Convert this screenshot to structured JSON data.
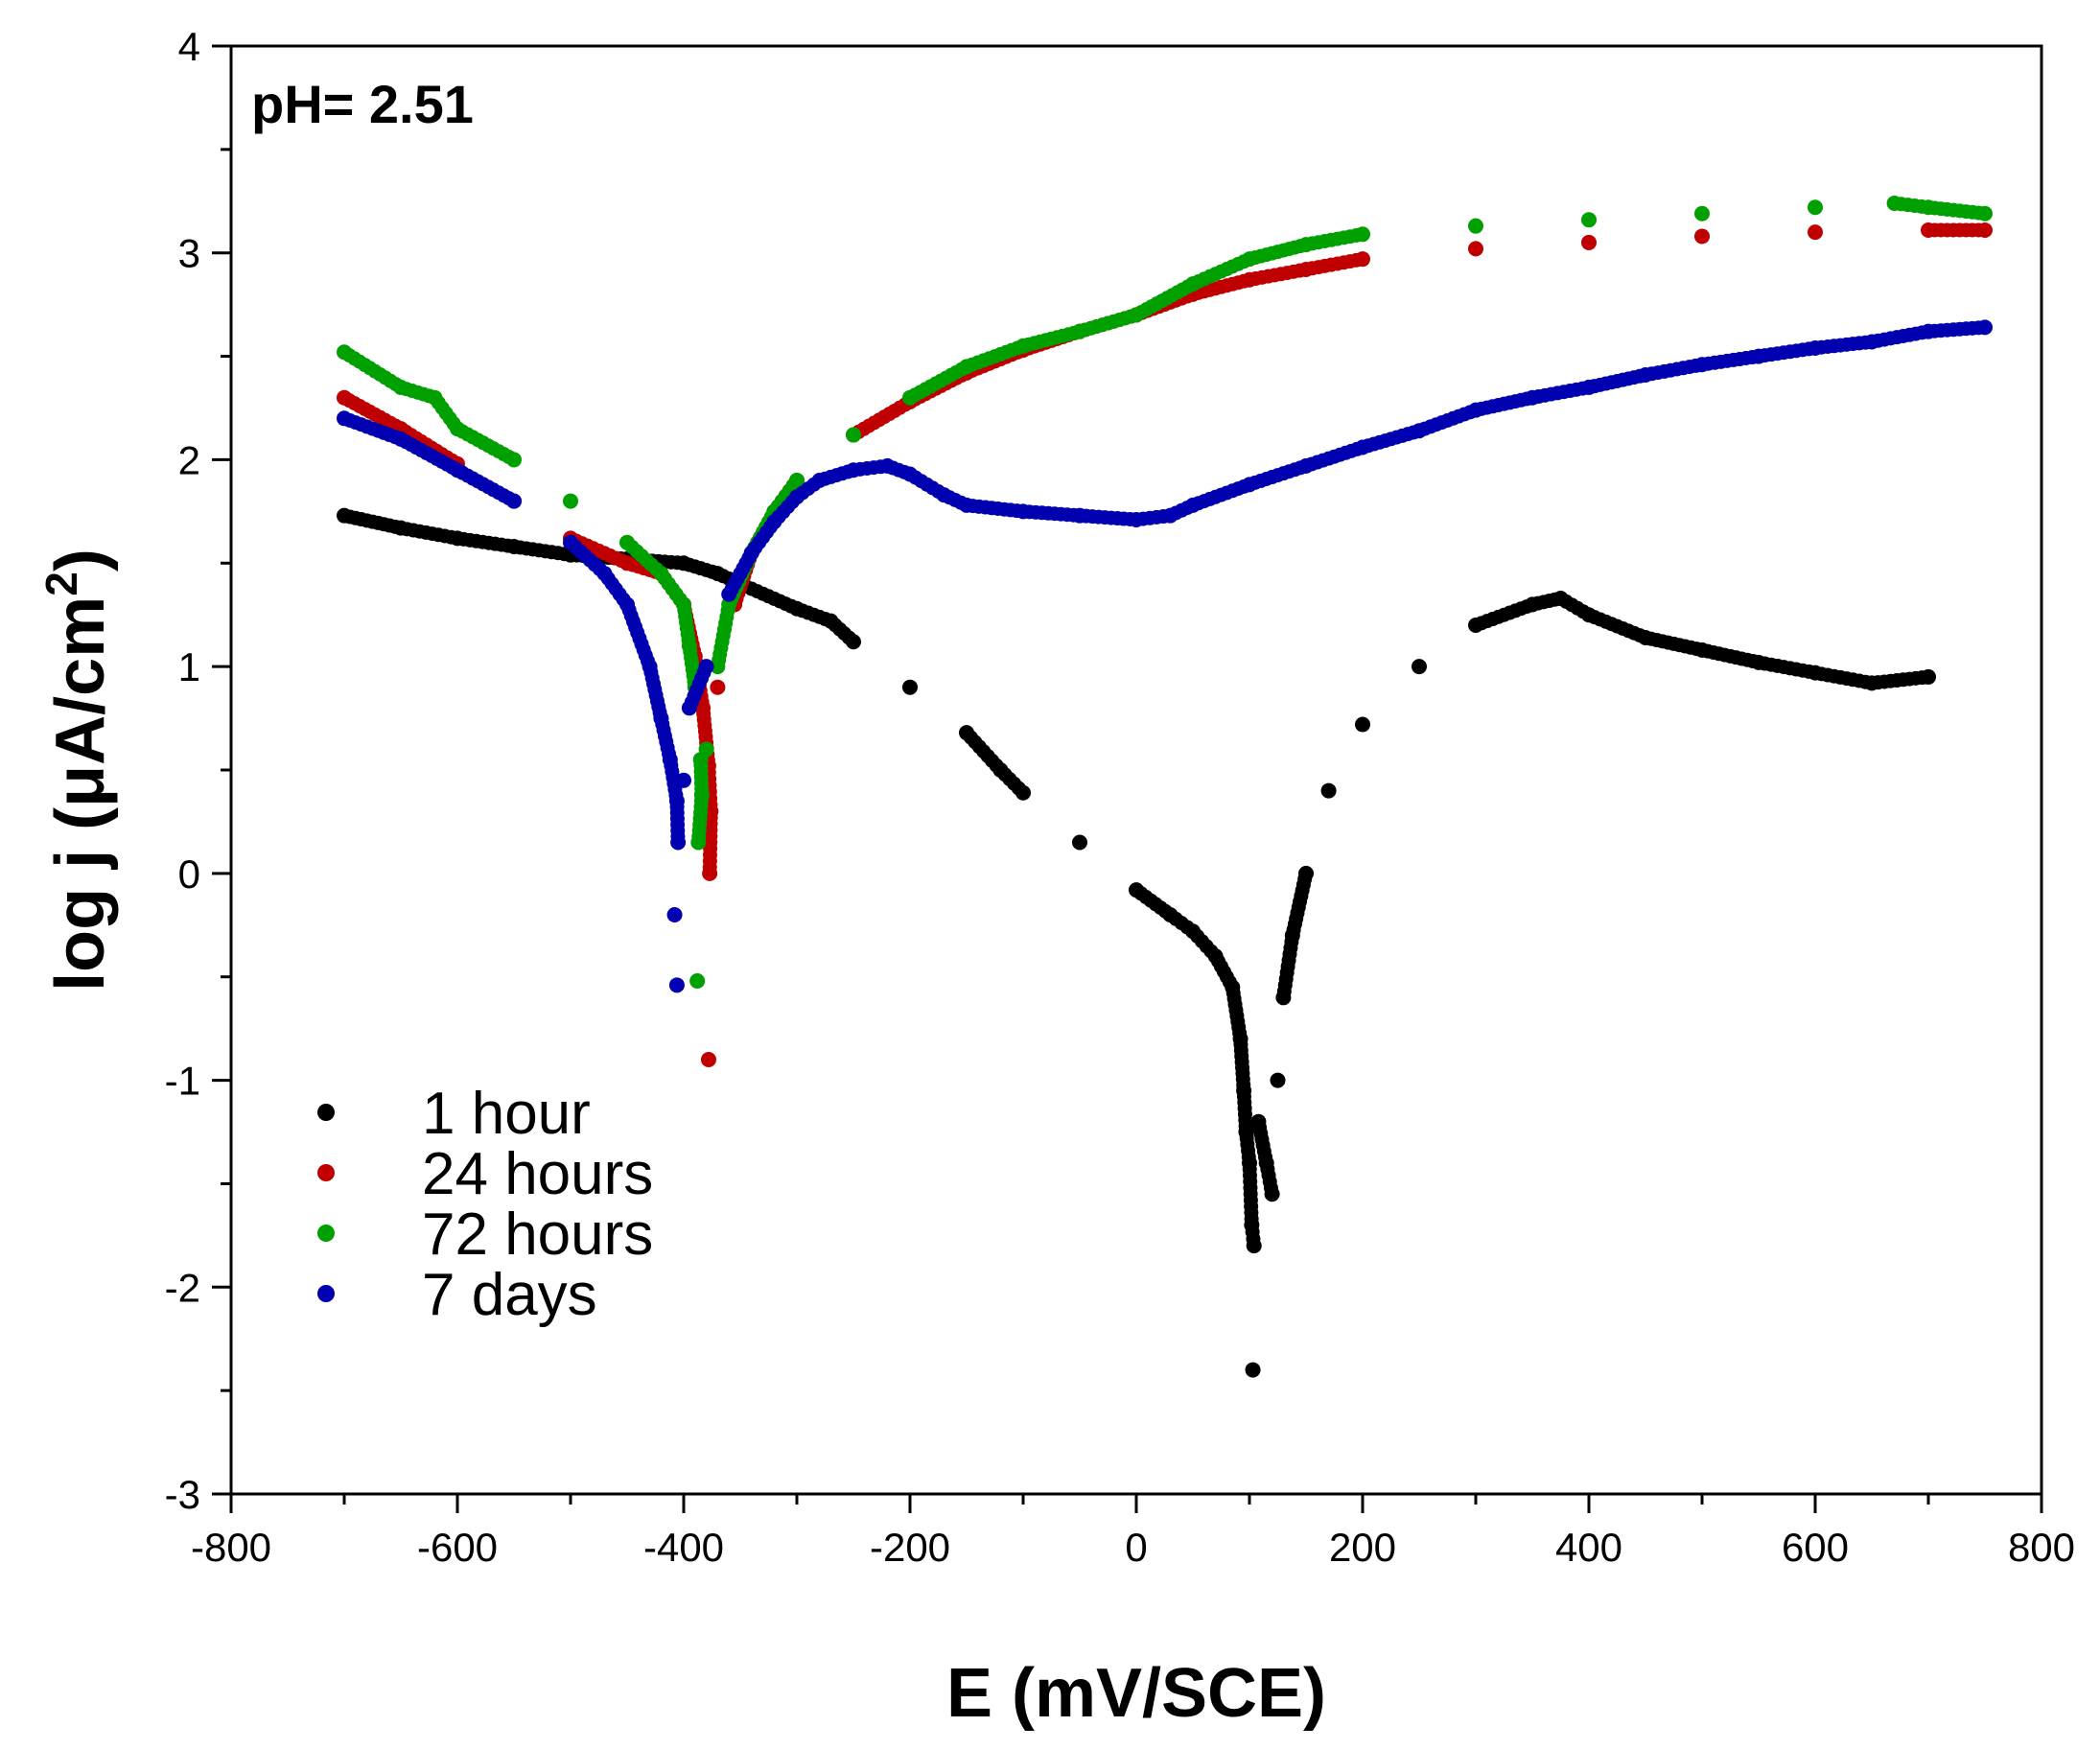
{
  "chart_data": {
    "type": "scatter",
    "annotation": "pH= 2.51",
    "xlabel": "E (mV/SCE)",
    "ylabel": "log j (μA/cm2)",
    "ylabel_main": "log j (μA/cm",
    "ylabel_sup": "2",
    "ylabel_close": ")",
    "xlim": [
      -800,
      800
    ],
    "ylim": [
      -3,
      4
    ],
    "xticks": [
      -800,
      -600,
      -400,
      -200,
      0,
      200,
      400,
      600,
      800
    ],
    "yticks": [
      -3,
      -2,
      -1,
      0,
      1,
      2,
      3,
      4
    ],
    "x_minor_step": 100,
    "y_minor_step": 0.5,
    "legend_position": "bottom-left",
    "grid": false,
    "series": [
      {
        "name": "1 hour",
        "color": "#000000",
        "points": [
          [
            -700,
            1.73
          ],
          [
            -650,
            1.67
          ],
          [
            -600,
            1.62
          ],
          [
            -550,
            1.58
          ],
          [
            -500,
            1.54
          ],
          [
            -450,
            1.52
          ],
          [
            -400,
            1.5
          ],
          [
            -370,
            1.45
          ],
          [
            -350,
            1.4
          ],
          [
            -300,
            1.28
          ],
          [
            -270,
            1.22
          ],
          [
            -250,
            1.12
          ],
          [
            -200,
            0.9
          ],
          [
            -150,
            0.68
          ],
          [
            -120,
            0.5
          ],
          [
            -100,
            0.39
          ],
          [
            -50,
            0.15
          ],
          [
            0,
            -0.08
          ],
          [
            30,
            -0.2
          ],
          [
            50,
            -0.28
          ],
          [
            70,
            -0.4
          ],
          [
            85,
            -0.55
          ],
          [
            92,
            -0.8
          ],
          [
            95,
            -1.05
          ],
          [
            97,
            -1.25
          ],
          [
            100,
            -1.4
          ],
          [
            102,
            -1.7
          ],
          [
            104,
            -1.8
          ],
          [
            103,
            -2.4
          ],
          [
            108,
            -1.2
          ],
          [
            115,
            -1.4
          ],
          [
            120,
            -1.55
          ],
          [
            125,
            -1.0
          ],
          [
            130,
            -0.6
          ],
          [
            138,
            -0.3
          ],
          [
            150,
            0.0
          ],
          [
            170,
            0.4
          ],
          [
            200,
            0.72
          ],
          [
            250,
            1.0
          ],
          [
            300,
            1.2
          ],
          [
            350,
            1.3
          ],
          [
            375,
            1.33
          ],
          [
            400,
            1.25
          ],
          [
            450,
            1.14
          ],
          [
            500,
            1.08
          ],
          [
            550,
            1.02
          ],
          [
            600,
            0.97
          ],
          [
            650,
            0.92
          ],
          [
            700,
            0.95
          ]
        ]
      },
      {
        "name": "24 hours",
        "color": "#c00000",
        "points": [
          [
            -700,
            2.3
          ],
          [
            -650,
            2.15
          ],
          [
            -600,
            1.98
          ],
          [
            -550,
            1.8
          ],
          [
            -500,
            1.62
          ],
          [
            -450,
            1.5
          ],
          [
            -420,
            1.45
          ],
          [
            -400,
            1.3
          ],
          [
            -390,
            1.05
          ],
          [
            -383,
            0.8
          ],
          [
            -378,
            0.52
          ],
          [
            -376,
            0.3
          ],
          [
            -377,
            0.0
          ],
          [
            -378,
            -0.9
          ],
          [
            -370,
            0.9
          ],
          [
            -355,
            1.3
          ],
          [
            -340,
            1.55
          ],
          [
            -320,
            1.75
          ],
          [
            -300,
            1.9
          ],
          [
            -250,
            2.12
          ],
          [
            -200,
            2.28
          ],
          [
            -150,
            2.42
          ],
          [
            -100,
            2.53
          ],
          [
            -50,
            2.62
          ],
          [
            0,
            2.7
          ],
          [
            50,
            2.8
          ],
          [
            100,
            2.87
          ],
          [
            150,
            2.92
          ],
          [
            200,
            2.97
          ],
          [
            300,
            3.02
          ],
          [
            400,
            3.05
          ],
          [
            500,
            3.08
          ],
          [
            600,
            3.1
          ],
          [
            700,
            3.11
          ],
          [
            750,
            3.11
          ]
        ]
      },
      {
        "name": "72 hours",
        "color": "#00a000",
        "points": [
          [
            -700,
            2.52
          ],
          [
            -650,
            2.35
          ],
          [
            -620,
            2.3
          ],
          [
            -600,
            2.15
          ],
          [
            -550,
            2.0
          ],
          [
            -500,
            1.8
          ],
          [
            -450,
            1.6
          ],
          [
            -420,
            1.45
          ],
          [
            -400,
            1.3
          ],
          [
            -395,
            1.1
          ],
          [
            -390,
            0.9
          ],
          [
            -385,
            0.55
          ],
          [
            -384,
            0.38
          ],
          [
            -387,
            0.15
          ],
          [
            -388,
            -0.52
          ],
          [
            -380,
            0.6
          ],
          [
            -370,
            1.0
          ],
          [
            -360,
            1.3
          ],
          [
            -340,
            1.55
          ],
          [
            -320,
            1.75
          ],
          [
            -300,
            1.9
          ],
          [
            -250,
            2.12
          ],
          [
            -200,
            2.3
          ],
          [
            -150,
            2.45
          ],
          [
            -100,
            2.55
          ],
          [
            -50,
            2.62
          ],
          [
            0,
            2.7
          ],
          [
            50,
            2.85
          ],
          [
            100,
            2.97
          ],
          [
            150,
            3.04
          ],
          [
            200,
            3.09
          ],
          [
            300,
            3.13
          ],
          [
            400,
            3.16
          ],
          [
            500,
            3.19
          ],
          [
            600,
            3.22
          ],
          [
            670,
            3.24
          ],
          [
            700,
            3.22
          ],
          [
            750,
            3.19
          ]
        ]
      },
      {
        "name": "7 days",
        "color": "#0000b0",
        "points": [
          [
            -700,
            2.2
          ],
          [
            -650,
            2.1
          ],
          [
            -600,
            1.95
          ],
          [
            -550,
            1.8
          ],
          [
            -500,
            1.6
          ],
          [
            -470,
            1.45
          ],
          [
            -450,
            1.3
          ],
          [
            -430,
            1.0
          ],
          [
            -420,
            0.75
          ],
          [
            -412,
            0.55
          ],
          [
            -406,
            0.35
          ],
          [
            -405,
            0.15
          ],
          [
            -408,
            -0.2
          ],
          [
            -406,
            -0.54
          ],
          [
            -400,
            0.45
          ],
          [
            -395,
            0.8
          ],
          [
            -380,
            1.0
          ],
          [
            -360,
            1.35
          ],
          [
            -340,
            1.55
          ],
          [
            -320,
            1.7
          ],
          [
            -300,
            1.82
          ],
          [
            -280,
            1.9
          ],
          [
            -250,
            1.95
          ],
          [
            -220,
            1.97
          ],
          [
            -200,
            1.93
          ],
          [
            -170,
            1.83
          ],
          [
            -150,
            1.78
          ],
          [
            -100,
            1.75
          ],
          [
            -50,
            1.73
          ],
          [
            0,
            1.71
          ],
          [
            30,
            1.73
          ],
          [
            50,
            1.78
          ],
          [
            100,
            1.88
          ],
          [
            150,
            1.97
          ],
          [
            200,
            2.06
          ],
          [
            250,
            2.14
          ],
          [
            300,
            2.24
          ],
          [
            350,
            2.3
          ],
          [
            400,
            2.35
          ],
          [
            450,
            2.41
          ],
          [
            500,
            2.46
          ],
          [
            550,
            2.5
          ],
          [
            600,
            2.54
          ],
          [
            650,
            2.57
          ],
          [
            700,
            2.62
          ],
          [
            750,
            2.64
          ]
        ]
      }
    ]
  }
}
